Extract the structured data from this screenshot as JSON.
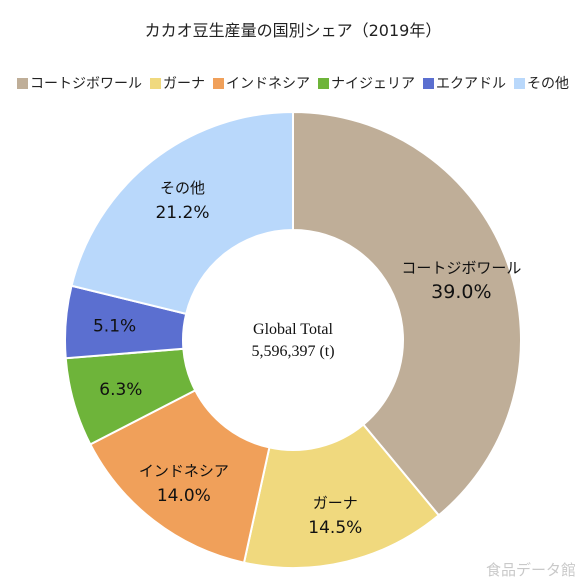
{
  "chart_data": {
    "type": "pie",
    "title": "カカオ豆生産量の国別シェア（2019年）",
    "center_text": [
      "Global Total",
      "5,596,397 (t)"
    ],
    "categories": [
      "コートジボワール",
      "ガーナ",
      "インドネシア",
      "ナイジェリア",
      "エクアドル",
      "その他"
    ],
    "values": [
      39.0,
      14.5,
      14.0,
      6.3,
      5.1,
      21.2
    ],
    "value_labels": [
      "39.0%",
      "14.5%",
      "14.0%",
      "6.3%",
      "5.1%",
      "21.2%"
    ],
    "slice_labels": [
      "コートジボワール",
      "ガーナ",
      "インドネシア",
      "",
      "",
      "その他"
    ],
    "colors": [
      "#bfae98",
      "#f0d97e",
      "#f0a05a",
      "#6eb43a",
      "#5b6fd0",
      "#b9d8fb"
    ],
    "legend_position": "top",
    "chart_form": "donut"
  },
  "watermark": "食品データ館"
}
